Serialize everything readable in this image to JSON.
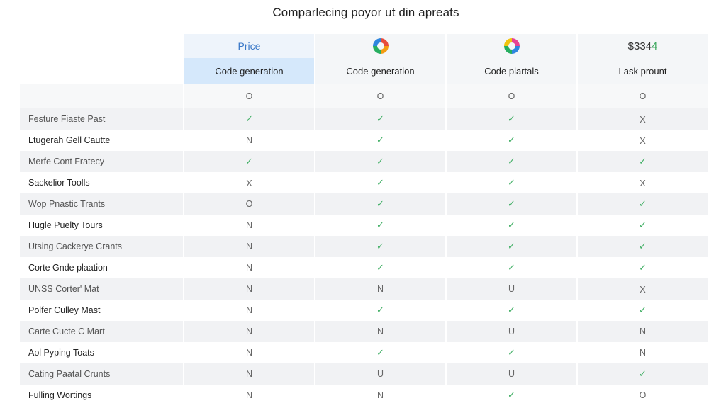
{
  "title": "Comparlecing poyor ut din apreats",
  "plans": [
    {
      "top_type": "text",
      "top_label": "Price",
      "label": "Code generation"
    },
    {
      "top_type": "logo",
      "logo_icon": "multicolor-ring-logo-icon",
      "label": "Code generation"
    },
    {
      "top_type": "logo",
      "logo_icon": "rainbow-ring-logo-icon",
      "label": "Code plartals"
    },
    {
      "top_type": "price",
      "price_main": "$334",
      "price_tail": "4",
      "label": "Lask prount"
    }
  ],
  "rows": [
    {
      "feature": "",
      "values": [
        "O",
        "O",
        "O",
        "O"
      ]
    },
    {
      "feature": "Festure Fiaste Past",
      "values": [
        "✓",
        "✓",
        "✓",
        "X"
      ]
    },
    {
      "feature": "Ltugerah Gell Cautte",
      "values": [
        "N",
        "✓",
        "✓",
        "X"
      ]
    },
    {
      "feature": "Merfe Cont Fratecy",
      "values": [
        "✓",
        "✓",
        "✓",
        "✓"
      ]
    },
    {
      "feature": "Sackelior Toolls",
      "values": [
        "X",
        "✓",
        "✓",
        "X"
      ]
    },
    {
      "feature": "Wop Pnastic Trants",
      "values": [
        "O",
        "✓",
        "✓",
        "✓"
      ]
    },
    {
      "feature": "Hugle Puelty Tours",
      "values": [
        "N",
        "✓",
        "✓",
        "✓"
      ]
    },
    {
      "feature": "Utsing Cackerye Crants",
      "values": [
        "N",
        "✓",
        "✓",
        "✓"
      ]
    },
    {
      "feature": "Corte Gnde plaation",
      "values": [
        "N",
        "✓",
        "✓",
        "✓"
      ]
    },
    {
      "feature": "UNSS Corter' Mat",
      "values": [
        "N",
        "N",
        "U",
        "X"
      ]
    },
    {
      "feature": "Polfer Culley Mast",
      "values": [
        "N",
        "✓",
        "✓",
        "✓"
      ]
    },
    {
      "feature": "Carte Cucte C Mart",
      "values": [
        "N",
        "N",
        "U",
        "N"
      ]
    },
    {
      "feature": "Aol Pyping Toats",
      "values": [
        "N",
        "✓",
        "✓",
        "N"
      ]
    },
    {
      "feature": "Cating Paatal Crunts",
      "values": [
        "N",
        "U",
        "U",
        "✓"
      ]
    },
    {
      "feature": "Fulling Wortings",
      "values": [
        "N",
        "N",
        "✓",
        "O"
      ]
    }
  ],
  "colors": {
    "check": "#3fae63",
    "highlight_header": "#d5e8fb",
    "price_text": "#3a78c8"
  }
}
